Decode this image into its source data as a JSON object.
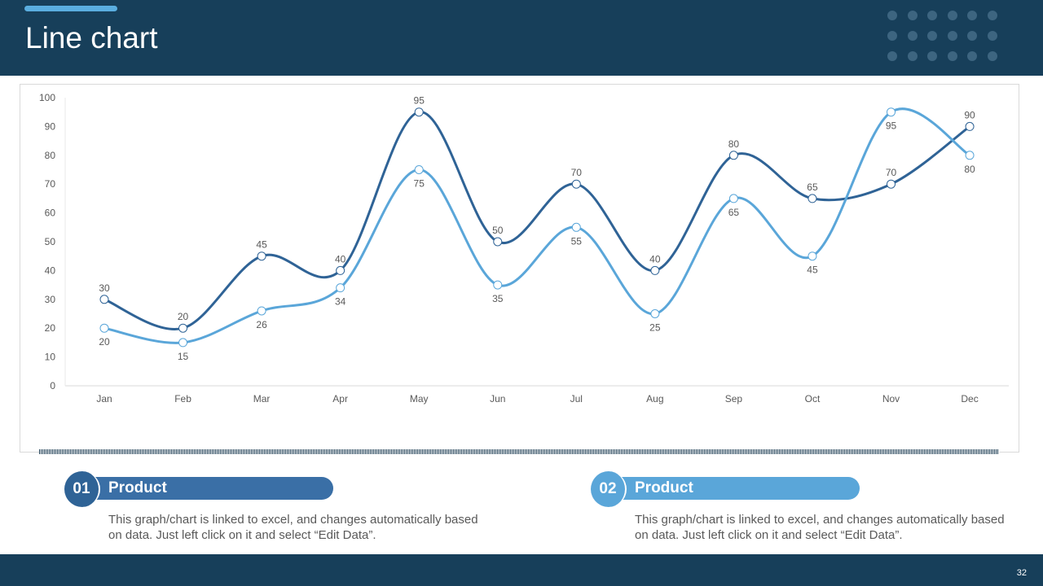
{
  "header": {
    "title": "Line chart"
  },
  "colors": {
    "dark": "#173f5a",
    "series1": "#2f6396",
    "series2": "#5aa6d9"
  },
  "chart_data": {
    "type": "line",
    "title": "",
    "categories": [
      "Jan",
      "Feb",
      "Mar",
      "Apr",
      "May",
      "Jun",
      "Jul",
      "Aug",
      "Sep",
      "Oct",
      "Nov",
      "Dec"
    ],
    "series": [
      {
        "name": "Product 01",
        "values": [
          30,
          20,
          45,
          40,
          95,
          50,
          70,
          40,
          80,
          65,
          70,
          90
        ]
      },
      {
        "name": "Product 02",
        "values": [
          20,
          15,
          26,
          34,
          75,
          35,
          55,
          25,
          65,
          45,
          95,
          80
        ]
      }
    ],
    "ylim": [
      0,
      100
    ],
    "yticks": [
      0,
      10,
      20,
      30,
      40,
      50,
      60,
      70,
      80,
      90,
      100
    ],
    "smooth": true,
    "grid": false,
    "data_labels": true
  },
  "cards": [
    {
      "number": "01",
      "title": "Product",
      "text": "This graph/chart is linked to excel, and changes automatically based on data. Just left click on it and select “Edit Data”."
    },
    {
      "number": "02",
      "title": "Product",
      "text": "This graph/chart is linked to excel, and changes automatically based on data. Just left click on it and select “Edit Data”."
    }
  ],
  "footer": {
    "page": "32"
  }
}
